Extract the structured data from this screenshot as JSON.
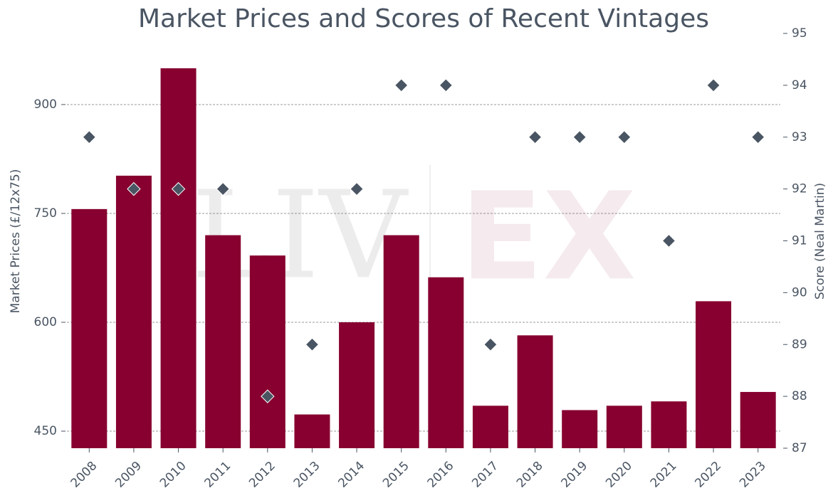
{
  "chart_data": {
    "type": "bar_scatter",
    "title": "Market Prices and Scores of Recent Vintages",
    "watermark": [
      "LIV",
      "EX"
    ],
    "categories": [
      "2008",
      "2009",
      "2010",
      "2011",
      "2012",
      "2013",
      "2014",
      "2015",
      "2016",
      "2017",
      "2018",
      "2019",
      "2020",
      "2021",
      "2022",
      "2023"
    ],
    "series": [
      {
        "name": "Market Prices",
        "color": "#870030",
        "axis": "y",
        "values": [
          756,
          802,
          950,
          720,
          692,
          473,
          600,
          720,
          662,
          485,
          582,
          479,
          485,
          491,
          629,
          504
        ]
      },
      {
        "name": "Score",
        "color": "#4a5563",
        "axis": "y2",
        "values": [
          93,
          92,
          92,
          92,
          88,
          89,
          92,
          94,
          94,
          89,
          93,
          93,
          93,
          91,
          94,
          93
        ]
      }
    ],
    "ylabel": "Market Prices (£/12x75)",
    "y2label": "Score (Neal Martin)",
    "ylim": [
      426.5,
      998
    ],
    "yticks": [
      450,
      600,
      750,
      900
    ],
    "y2lim": [
      87,
      95
    ],
    "y2ticks": [
      87,
      88,
      89,
      90,
      91,
      92,
      93,
      94,
      95
    ],
    "grid": true
  }
}
